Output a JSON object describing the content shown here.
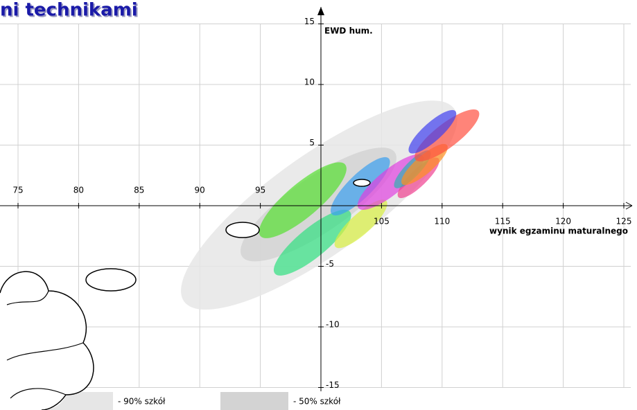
{
  "title": "ni technikami",
  "chart_data": {
    "type": "ellipse",
    "xlabel": "wynik egzaminu maturalnego",
    "ylabel": "EWD hum.",
    "xlim": [
      75,
      126
    ],
    "ylim": [
      -15,
      15
    ],
    "xticks": [
      75,
      80,
      85,
      90,
      95,
      105,
      110,
      115,
      120,
      125
    ],
    "yticks": [
      -15,
      -10,
      -5,
      5,
      10,
      15
    ],
    "grid": true,
    "series": [
      {
        "name": "- 90% szkół",
        "color": "#e6e6e6",
        "x_range": [
          88.7,
          111
        ],
        "y_range": [
          -7.9,
          8
        ]
      },
      {
        "name": "- 50% szkół",
        "color": "#d3d3d3",
        "x_range": [
          93.5,
          106.1
        ],
        "y_range": [
          -4.2,
          4.4
        ]
      },
      {
        "color": "#55e030",
        "x_range": [
          95,
          102
        ],
        "y_range": [
          -2.5,
          3.4
        ]
      },
      {
        "color": "#30e080",
        "x_range": [
          96.2,
          102.4
        ],
        "y_range": [
          -5.6,
          -0.5
        ]
      },
      {
        "color": "#d8f040",
        "x_range": [
          101.2,
          105.4
        ],
        "y_range": [
          -3.4,
          0.4
        ]
      },
      {
        "color": "#3aa0f0",
        "x_range": [
          100.9,
          105.6
        ],
        "y_range": [
          -0.7,
          3.9
        ]
      },
      {
        "color": "#e040e0",
        "x_range": [
          103.1,
          108.4
        ],
        "y_range": [
          -0.2,
          4.1
        ]
      },
      {
        "color": "#f04090",
        "x_range": [
          106.4,
          109.7
        ],
        "y_range": [
          0.7,
          3.9
        ]
      },
      {
        "color": "#30b0b0",
        "x_range": [
          106.1,
          109
        ],
        "y_range": [
          1.5,
          4.5
        ]
      },
      {
        "color": "#ff9020",
        "x_range": [
          106.7,
          110.4
        ],
        "y_range": [
          1.8,
          5
        ]
      },
      {
        "color": "#ff5040",
        "x_range": [
          107.8,
          113
        ],
        "y_range": [
          3.8,
          7.8
        ]
      },
      {
        "color": "#4040f0",
        "x_range": [
          107.3,
          111.1
        ],
        "y_range": [
          4.4,
          7.8
        ]
      }
    ]
  }
}
